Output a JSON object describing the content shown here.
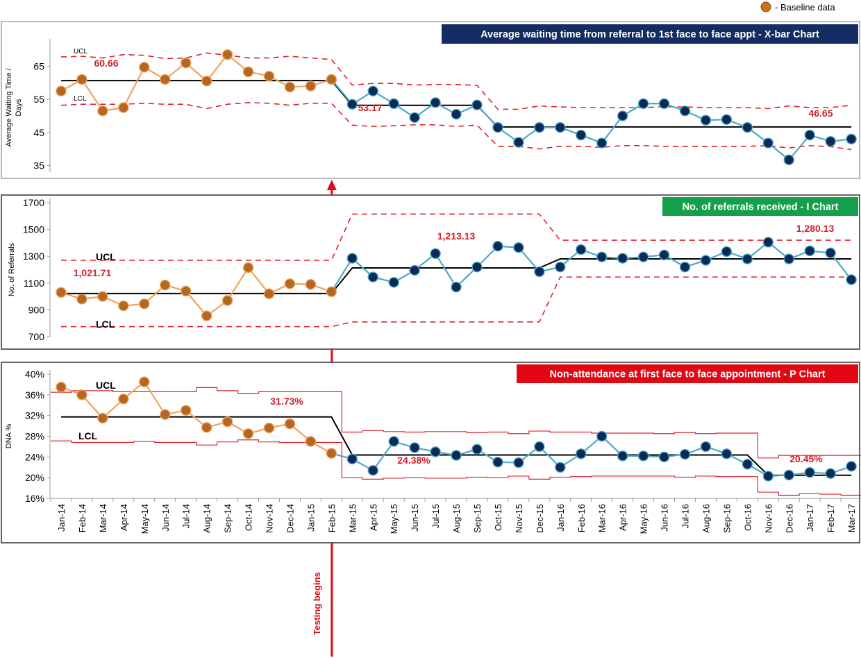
{
  "legend": {
    "baseline_label": "- Baseline data",
    "baseline_color": "#c8721f"
  },
  "testing_marker": {
    "label": "Testing begins",
    "at_month": "Feb-15",
    "color": "#e30613"
  },
  "months": [
    "Jan-14",
    "Feb-14",
    "Mar-14",
    "Apr-14",
    "May-14",
    "Jun-14",
    "Jul-14",
    "Aug-14",
    "Sep-14",
    "Oct-14",
    "Nov-14",
    "Dec-14",
    "Jan-15",
    "Feb-15",
    "Mar-15",
    "Apr-15",
    "May-15",
    "Jun-15",
    "Jul-15",
    "Aug-15",
    "Sep-15",
    "Oct-15",
    "Nov-15",
    "Dec-15",
    "Jan-16",
    "Feb-16",
    "Mar-16",
    "Apr-16",
    "May-16",
    "Jun-16",
    "Jul-16",
    "Aug-16",
    "Sep-16",
    "Oct-16",
    "Nov-16",
    "Dec-16",
    "Jan-17",
    "Feb-17",
    "Mar-17"
  ],
  "colors": {
    "baseline_line": "#f0a35c",
    "baseline_point": "#b5661f",
    "test_line": "#4aa8c7",
    "test_point": "#0d2a57",
    "limit": "#e0202a",
    "center": "#000000"
  },
  "chart_data": [
    {
      "type": "line",
      "title": "Average waiting time from referral to 1st face to face appt - X-bar Chart",
      "title_bg": "#142b63",
      "ylabel": "Average Waiting Time / Days",
      "ylim": [
        33,
        72
      ],
      "yticks": [
        35,
        45,
        55,
        65
      ],
      "tick_format": "plain",
      "values": [
        57.5,
        61,
        51.5,
        52.5,
        64.7,
        61,
        66,
        60.5,
        68.5,
        63.3,
        62,
        58.7,
        59,
        61,
        53.5,
        57.5,
        53.7,
        49.5,
        54,
        50.5,
        53.3,
        46.5,
        42,
        46.5,
        46.5,
        44.2,
        41.8,
        50,
        53.7,
        53.7,
        51.5,
        48.7,
        48.9,
        46.5,
        41.8,
        36.7,
        44.2,
        42.3,
        43
      ],
      "center": [
        {
          "from": 0,
          "to": 13,
          "value": 60.66
        },
        {
          "from": 14,
          "to": 20,
          "value": 53.17
        },
        {
          "from": 21,
          "to": 38,
          "value": 46.65
        }
      ],
      "ucl": [
        67.8,
        68,
        67.5,
        68.5,
        68.3,
        67.3,
        67.5,
        69,
        68.3,
        67.5,
        67.5,
        68,
        67.5,
        67,
        59.3,
        59.8,
        59.8,
        59.3,
        59.5,
        59.5,
        59.2,
        52,
        52,
        53,
        52.7,
        52.5,
        52.5,
        52.5,
        52.5,
        52.8,
        52.7,
        52.5,
        52.5,
        52.5,
        52.2,
        53,
        52.5,
        52.5,
        53.2
      ],
      "lcl": [
        53.2,
        53.5,
        53.5,
        53.5,
        53.8,
        53.5,
        53.5,
        52.2,
        53.5,
        54,
        53.8,
        53.2,
        53.8,
        53.8,
        47.2,
        46.8,
        47,
        47.3,
        47.3,
        46.8,
        47.2,
        40.8,
        40.8,
        40,
        40.8,
        40.8,
        40.5,
        41,
        41,
        40.8,
        40.8,
        40.8,
        40.8,
        40.8,
        41,
        40.3,
        41,
        40.7,
        39.8
      ],
      "limit_style": "dashed",
      "limit_labels": {
        "ucl": "UCL",
        "lcl": "LCL"
      },
      "center_labels": [
        "60.66",
        "53.17",
        "46.65"
      ],
      "baseline_count": 14
    },
    {
      "type": "line",
      "title": "No. of referrals received -  I Chart",
      "title_bg": "#14a04a",
      "ylabel": "No. of Referrals",
      "ylim": [
        700,
        1700
      ],
      "yticks": [
        700,
        900,
        1100,
        1300,
        1500,
        1700
      ],
      "tick_format": "plain",
      "values": [
        1030,
        980,
        1000,
        930,
        945,
        1085,
        1040,
        855,
        970,
        1215,
        1020,
        1095,
        1090,
        1035,
        1285,
        1145,
        1105,
        1195,
        1320,
        1070,
        1220,
        1375,
        1365,
        1185,
        1220,
        1350,
        1295,
        1285,
        1295,
        1310,
        1220,
        1270,
        1335,
        1280,
        1405,
        1280,
        1340,
        1325,
        1125
      ],
      "center": [
        {
          "from": 0,
          "to": 13,
          "value": 1021.71
        },
        {
          "from": 14,
          "to": 23,
          "value": 1213.13
        },
        {
          "from": 24,
          "to": 38,
          "value": 1280.13
        }
      ],
      "ucl": [
        1270,
        1270,
        1270,
        1270,
        1270,
        1270,
        1270,
        1270,
        1270,
        1270,
        1270,
        1270,
        1270,
        1270,
        1615,
        1615,
        1615,
        1615,
        1615,
        1615,
        1615,
        1615,
        1615,
        1615,
        1420,
        1420,
        1420,
        1420,
        1420,
        1420,
        1420,
        1420,
        1420,
        1420,
        1420,
        1420,
        1420,
        1420,
        1420
      ],
      "lcl": [
        775,
        775,
        775,
        775,
        775,
        775,
        775,
        775,
        775,
        775,
        775,
        775,
        775,
        775,
        810,
        810,
        810,
        810,
        810,
        810,
        810,
        810,
        810,
        810,
        1145,
        1145,
        1145,
        1145,
        1145,
        1145,
        1145,
        1145,
        1145,
        1145,
        1145,
        1145,
        1145,
        1145,
        1145
      ],
      "limit_style": "dashed",
      "limit_labels": {
        "ucl": "UCL",
        "lcl": "LCL"
      },
      "center_labels": [
        "1,021.71",
        "1,213.13",
        "1,280.13"
      ],
      "baseline_count": 14
    },
    {
      "type": "line",
      "title": "Non-attendance at first face to face appointment - P Chart",
      "title_bg": "#e30613",
      "ylabel": "DNA %",
      "ylim": [
        16,
        40
      ],
      "yticks": [
        16,
        20,
        24,
        28,
        32,
        36,
        40
      ],
      "tick_format": "percent",
      "values": [
        37.5,
        36,
        31.5,
        35.2,
        38.5,
        32.2,
        33,
        29.7,
        30.8,
        28.5,
        29.6,
        30.4,
        27,
        24.7,
        23.6,
        21.4,
        27,
        25.8,
        25,
        24.3,
        25.5,
        23,
        22.9,
        26,
        22,
        24.6,
        28,
        24.2,
        24.2,
        24,
        24.5,
        26,
        24.6,
        22.6,
        20.3,
        20.5,
        21,
        20.8,
        22.2
      ],
      "center": [
        {
          "from": 0,
          "to": 13,
          "value": 31.73
        },
        {
          "from": 14,
          "to": 33,
          "value": 24.38
        },
        {
          "from": 34,
          "to": 38,
          "value": 20.45
        }
      ],
      "ucl": [
        36.5,
        36.8,
        36.8,
        36.6,
        36.6,
        36.6,
        36.6,
        37.4,
        36.8,
        36.3,
        36.6,
        36.6,
        36.6,
        36.6,
        28.8,
        29.1,
        28.9,
        28.8,
        28.9,
        28.9,
        28.7,
        28.8,
        28.5,
        29,
        28.8,
        28.8,
        28.6,
        28.6,
        28.6,
        28.5,
        28.7,
        28.5,
        28.6,
        28.6,
        23.8,
        24.3,
        24.3,
        24.3,
        24.3
      ],
      "lcl": [
        27.1,
        26.8,
        26.8,
        26.8,
        27,
        26.8,
        26.8,
        26.3,
        26.9,
        27.3,
        26.9,
        26.8,
        26.8,
        26.8,
        20,
        19.7,
        19.9,
        20,
        19.9,
        19.9,
        20.1,
        20,
        20.3,
        19.7,
        20.1,
        20.2,
        20.3,
        20.3,
        20.3,
        20.3,
        20.1,
        20.3,
        20.2,
        20.2,
        17.2,
        16.6,
        16.9,
        16.8,
        16.6
      ],
      "limit_style": "solid",
      "limit_labels": {
        "ucl": "UCL",
        "lcl": "LCL"
      },
      "center_labels": [
        "31.73%",
        "24.38%",
        "20.45%"
      ],
      "baseline_count": 14
    }
  ]
}
